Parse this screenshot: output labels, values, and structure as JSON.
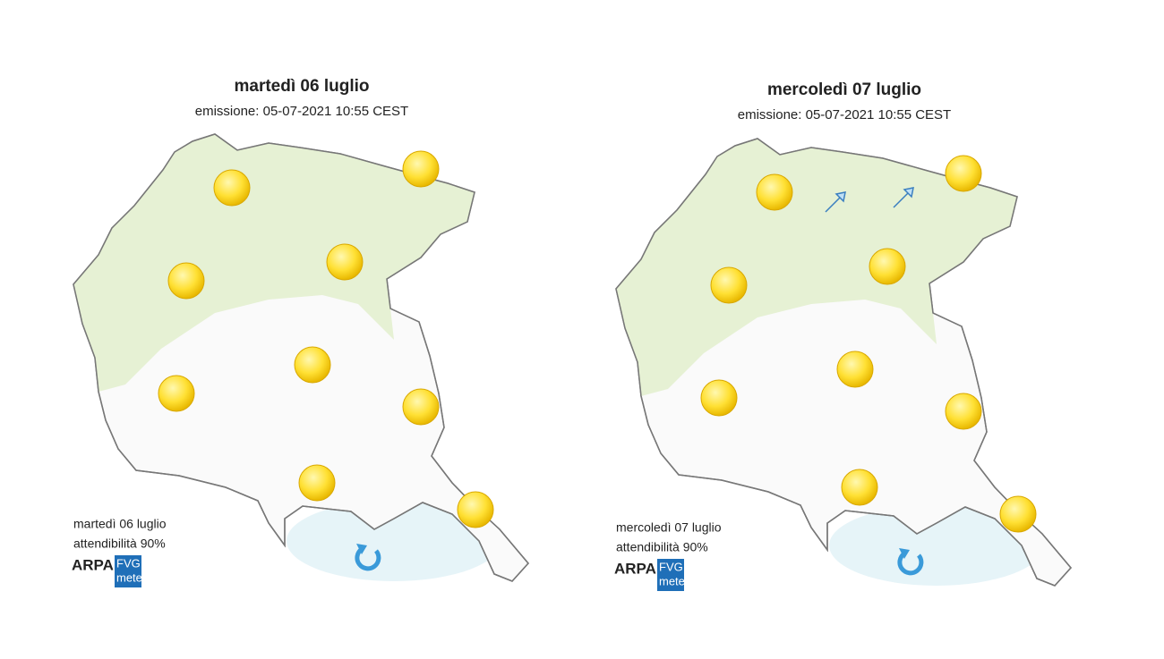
{
  "panels": [
    {
      "title": "martedì 06 luglio",
      "subtitle": "emissione: 05-07-2021 10:55 CEST",
      "footer_date": "martedì 06 luglio",
      "footer_reliability": "attendibilità 90%",
      "logo": {
        "arpa": "ARPA",
        "fvg": "FVG",
        "meteo": "meteo"
      }
    },
    {
      "title": "mercoledì 07 luglio",
      "subtitle": "emissione: 05-07-2021 10:55 CEST",
      "footer_date": "mercoledì 07 luglio",
      "footer_reliability": "attendibilità 90%",
      "logo": {
        "arpa": "ARPA",
        "fvg": "FVG",
        "meteo": "meteo"
      }
    }
  ]
}
